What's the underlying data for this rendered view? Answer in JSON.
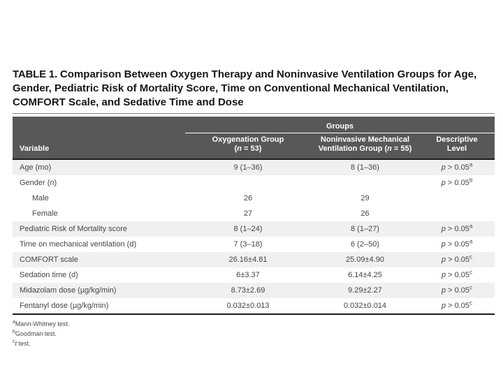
{
  "title": {
    "label": "TABLE 1.",
    "text": "Comparison Between Oxygen Therapy and Noninvasive Ventilation Groups for Age, Gender, Pediatric Risk of Mortality Score, Time on Conventional Mechanical Ventilation, COMFORT Scale, and Sedative Time and Dose"
  },
  "table": {
    "spanner": "Groups",
    "columns": [
      {
        "line1": "Variable",
        "line2": ""
      },
      {
        "line1": "Oxygenation Group",
        "line2": "(n = 53)"
      },
      {
        "line1": "Noninvasive Mechanical",
        "line2": "Ventilation Group (n = 55)"
      },
      {
        "line1": "Descriptive",
        "line2": "Level"
      }
    ],
    "rows": [
      {
        "variable": "Age (mo)",
        "indent": false,
        "oxygenation": "9 (1–36)",
        "nimv": "8 (1–36)",
        "p": "p > 0.05",
        "p_sup": "a"
      },
      {
        "variable": "Gender (n)",
        "indent": false,
        "oxygenation": "",
        "nimv": "",
        "p": "p > 0.05",
        "p_sup": "b"
      },
      {
        "variable": "Male",
        "indent": true,
        "oxygenation": "26",
        "nimv": "29",
        "p": "",
        "p_sup": ""
      },
      {
        "variable": "Female",
        "indent": true,
        "oxygenation": "27",
        "nimv": "26",
        "p": "",
        "p_sup": ""
      },
      {
        "variable": "Pediatric Risk of Mortality score",
        "indent": false,
        "oxygenation": "8 (1–24)",
        "nimv": "8 (1–27)",
        "p": "p > 0.05",
        "p_sup": "a"
      },
      {
        "variable": "Time on mechanical ventilation (d)",
        "indent": false,
        "oxygenation": "7 (3–18)",
        "nimv": "6 (2–50)",
        "p": "p > 0.05",
        "p_sup": "a"
      },
      {
        "variable": "COMFORT scale",
        "indent": false,
        "oxygenation": "26.16±4.81",
        "nimv": "25.09±4.90",
        "p": "p > 0.05",
        "p_sup": "c"
      },
      {
        "variable": "Sedation time (d)",
        "indent": false,
        "oxygenation": "6±3.37",
        "nimv": "6.14±4.25",
        "p": "p > 0.05",
        "p_sup": "c"
      },
      {
        "variable": "Midazolam dose (µg/kg/min)",
        "indent": false,
        "oxygenation": "8.73±2.69",
        "nimv": "9.29±2.27",
        "p": "p > 0.05",
        "p_sup": "c"
      },
      {
        "variable": "Fentanyl dose (µg/kg/min)",
        "indent": false,
        "oxygenation": "0.032±0.013",
        "nimv": "0.032±0.014",
        "p": "p > 0.05",
        "p_sup": "c"
      }
    ],
    "footnotes": [
      {
        "marker": "a",
        "text": "Mann-Whitney test."
      },
      {
        "marker": "b",
        "text": "Goodman test."
      },
      {
        "marker": "c",
        "text": "t test."
      }
    ]
  },
  "colors": {
    "header_bg": "#58585a",
    "row_stripe": "#f0f0f1",
    "rule_black": "#1a1a1a"
  }
}
